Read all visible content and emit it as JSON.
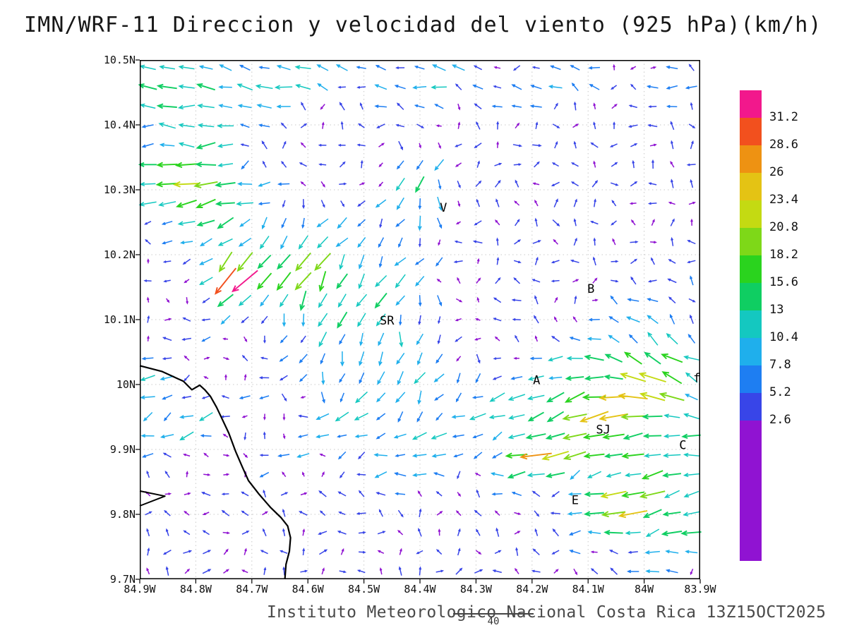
{
  "title": "IMN/WRF-11 Direccion y velocidad del viento (925 hPa)(km/h)",
  "footer": {
    "caption": "Instituto Meteorologico Nacional Costa Rica 13Z15OCT2025",
    "note": "40"
  },
  "chart_data": {
    "type": "vector_field",
    "title": "IMN/WRF-11 Direccion y velocidad del viento (925 hPa)(km/h)",
    "variable": "Direccion y velocidad del viento",
    "level": "925 hPa",
    "units": "km/h",
    "x_axis": {
      "west": 84.9,
      "east": 83.9,
      "ticks": [
        {
          "label": "84.9W",
          "lon": 84.9
        },
        {
          "label": "84.8W",
          "lon": 84.8
        },
        {
          "label": "84.7W",
          "lon": 84.7
        },
        {
          "label": "84.6W",
          "lon": 84.6
        },
        {
          "label": "84.5W",
          "lon": 84.5
        },
        {
          "label": "84.4W",
          "lon": 84.4
        },
        {
          "label": "84.3W",
          "lon": 84.3
        },
        {
          "label": "84.2W",
          "lon": 84.2
        },
        {
          "label": "84.1W",
          "lon": 84.1
        },
        {
          "label": "84W",
          "lon": 84.0
        },
        {
          "label": "83.9W",
          "lon": 83.9
        }
      ]
    },
    "y_axis": {
      "north": 10.5,
      "south": 9.7,
      "ticks": [
        {
          "label": "10.5N",
          "lat": 10.5
        },
        {
          "label": "10.4N",
          "lat": 10.4
        },
        {
          "label": "10.3N",
          "lat": 10.3
        },
        {
          "label": "10.2N",
          "lat": 10.2
        },
        {
          "label": "10.1N",
          "lat": 10.1
        },
        {
          "label": "10N",
          "lat": 10.0
        },
        {
          "label": "9.9N",
          "lat": 9.9
        },
        {
          "label": "9.8N",
          "lat": 9.8
        },
        {
          "label": "9.7N",
          "lat": 9.7
        }
      ]
    },
    "colorbar": {
      "labels_top_to_bottom": [
        "31.2",
        "28.6",
        "26",
        "23.4",
        "20.8",
        "18.2",
        "15.6",
        "13",
        "10.4",
        "7.8",
        "5.2",
        "2.6"
      ],
      "levels_kmh": [
        2.6,
        5.2,
        7.8,
        10.4,
        13,
        15.6,
        18.2,
        20.8,
        23.4,
        26,
        28.6,
        31.2
      ],
      "colors_low_to_high": [
        "#9013D2",
        "#3845E8",
        "#1E7EF2",
        "#1FAFEC",
        "#14C8C0",
        "#0FCE62",
        "#2AD31E",
        "#7ED818",
        "#C4DA12",
        "#E4C314",
        "#EE9212",
        "#F2501E",
        "#F2188C"
      ]
    },
    "stations": [
      {
        "label": "V",
        "lon": 84.358,
        "lat": 10.272
      },
      {
        "label": "B",
        "lon": 84.095,
        "lat": 10.147
      },
      {
        "label": "SR",
        "lon": 84.459,
        "lat": 10.098
      },
      {
        "label": "A",
        "lon": 84.192,
        "lat": 10.006
      },
      {
        "label": "SJ",
        "lon": 84.073,
        "lat": 9.93
      },
      {
        "label": "C",
        "lon": 83.931,
        "lat": 9.906
      },
      {
        "label": "E",
        "lon": 84.123,
        "lat": 9.821
      },
      {
        "label": "f",
        "lon": 83.906,
        "lat": 10.009
      }
    ],
    "coastline": {
      "main": [
        [
          84.9,
          10.029
        ],
        [
          84.86,
          10.02
        ],
        [
          84.822,
          10.005
        ],
        [
          84.807,
          9.992
        ],
        [
          84.793,
          9.999
        ],
        [
          84.784,
          9.992
        ],
        [
          84.774,
          9.982
        ],
        [
          84.763,
          9.965
        ],
        [
          84.753,
          9.947
        ],
        [
          84.741,
          9.925
        ],
        [
          84.729,
          9.897
        ],
        [
          84.717,
          9.873
        ],
        [
          84.706,
          9.852
        ],
        [
          84.688,
          9.832
        ],
        [
          84.667,
          9.811
        ],
        [
          84.648,
          9.795
        ],
        [
          84.636,
          9.782
        ],
        [
          84.631,
          9.764
        ],
        [
          84.633,
          9.743
        ],
        [
          84.639,
          9.723
        ],
        [
          84.641,
          9.7
        ]
      ],
      "inlet": [
        [
          84.9,
          9.836
        ],
        [
          84.855,
          9.828
        ],
        [
          84.9,
          9.813
        ]
      ]
    },
    "wind_grid": {
      "nx": 29,
      "ny": 27,
      "lon_west": 84.885,
      "lon_east": 83.915,
      "lat_min": 9.712,
      "lat_max": 10.488,
      "seed": 13
    },
    "background_wind": {
      "speed_min_kmh": 2.1,
      "speed_span_kmh": 2.8
    },
    "flow_features": [
      {
        "lon": 84.55,
        "lat": 10.475,
        "slon": 0.45,
        "slat": 0.035,
        "du": -8,
        "dv": 0
      },
      {
        "lon": 84.85,
        "lat": 10.42,
        "slon": 0.1,
        "slat": 0.055,
        "du": -12,
        "dv": -1
      },
      {
        "lon": 84.8,
        "lat": 10.3,
        "slon": 0.07,
        "slat": 0.04,
        "du": -21,
        "dv": -5
      },
      {
        "lon": 84.62,
        "lat": 10.18,
        "slon": 0.13,
        "slat": 0.06,
        "du": -9,
        "dv": -15
      },
      {
        "lon": 84.735,
        "lat": 10.165,
        "slon": 0.027,
        "slat": 0.02,
        "du": -20,
        "dv": -15
      },
      {
        "lon": 84.47,
        "lat": 10.03,
        "slon": 0.11,
        "slat": 0.07,
        "du": -3,
        "dv": -12
      },
      {
        "lon": 84.4,
        "lat": 10.3,
        "slon": 0.05,
        "slat": 0.06,
        "du": -2,
        "dv": -10
      },
      {
        "lon": 84.09,
        "lat": 9.95,
        "slon": 0.13,
        "slat": 0.07,
        "du": -18,
        "dv": -8
      },
      {
        "lon": 84.19,
        "lat": 9.885,
        "slon": 0.028,
        "slat": 0.02,
        "du": -12,
        "dv": -1
      },
      {
        "lon": 83.96,
        "lat": 9.8,
        "slon": 0.1,
        "slat": 0.06,
        "du": -14,
        "dv": -4
      },
      {
        "lon": 84.04,
        "lat": 9.805,
        "slon": 0.03,
        "slat": 0.02,
        "du": -10,
        "dv": -3
      },
      {
        "lon": 84.87,
        "lat": 9.96,
        "slon": 0.09,
        "slat": 0.05,
        "du": -9,
        "dv": -5
      },
      {
        "lon": 84.45,
        "lat": 9.9,
        "slon": 0.14,
        "slat": 0.05,
        "du": -7,
        "dv": -2
      },
      {
        "lon": 83.99,
        "lat": 10.02,
        "slon": 0.07,
        "slat": 0.06,
        "du": -10,
        "dv": 10
      }
    ]
  }
}
